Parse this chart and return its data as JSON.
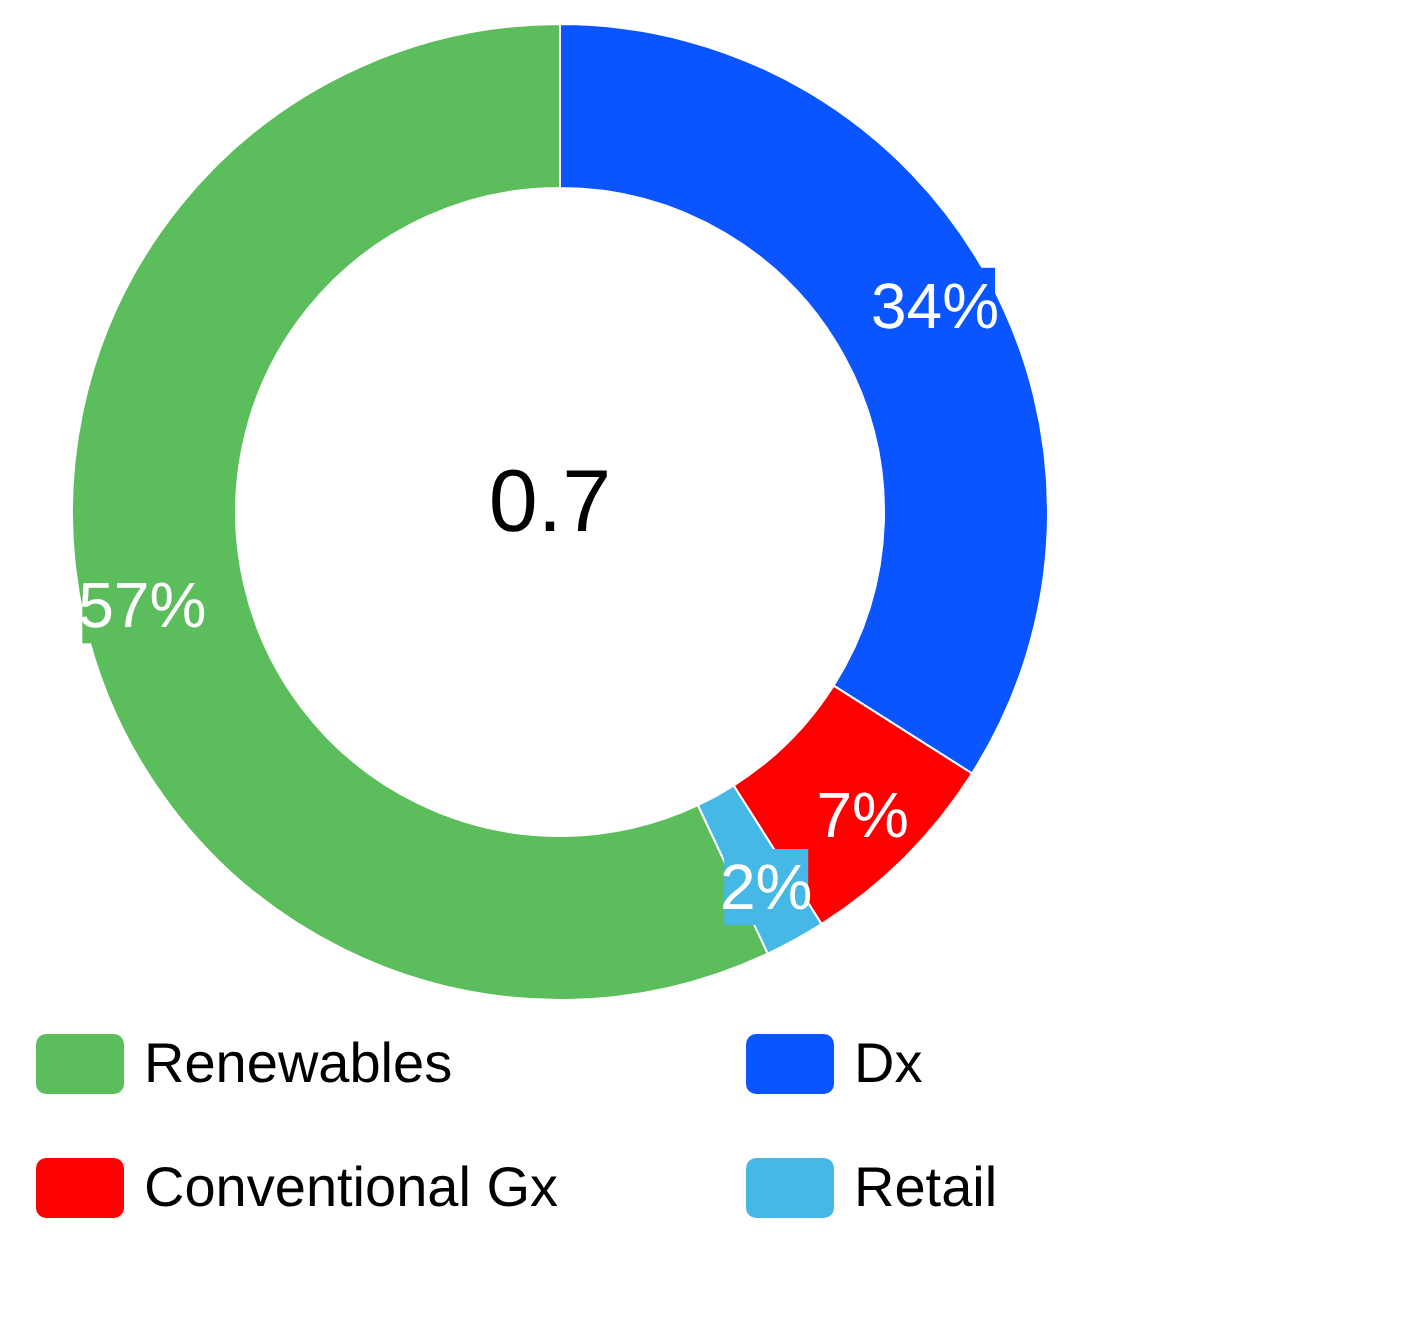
{
  "chart_data": {
    "type": "donut",
    "categories": [
      "Renewables",
      "Dx",
      "Conventional Gx",
      "Retail"
    ],
    "values": [
      57,
      34,
      7,
      2
    ],
    "colors": [
      "#5bbd5b",
      "#0a55ff",
      "#ff0000",
      "#45b8e6"
    ],
    "value_labels": [
      "57%",
      "34%",
      "7%",
      "2%"
    ],
    "legend": "bottom",
    "annotations": [
      "0.7"
    ]
  }
}
